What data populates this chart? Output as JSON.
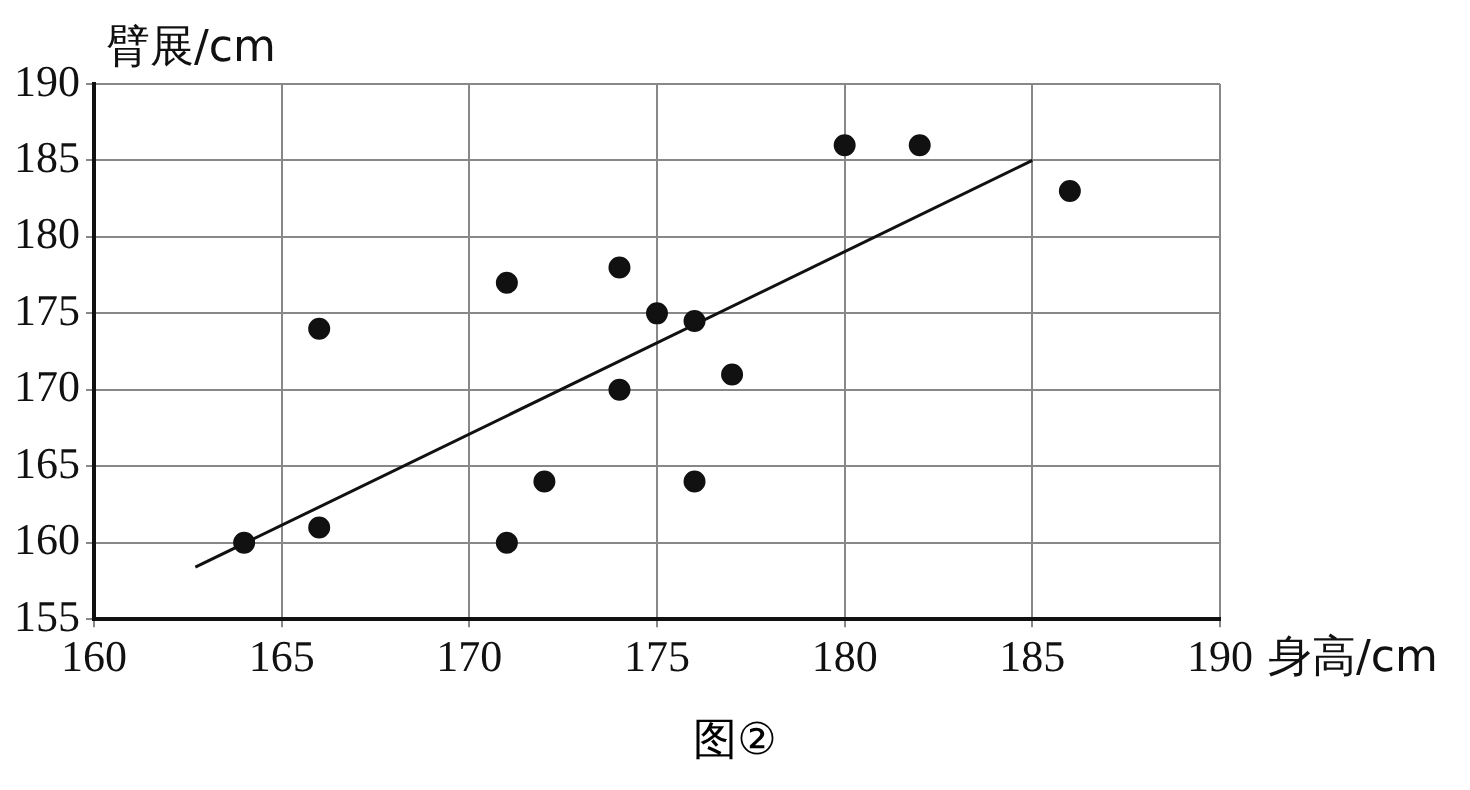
{
  "chart_data": {
    "type": "scatter",
    "xlabel": "身高/cm",
    "ylabel": "臂展/cm",
    "annotations": [
      "图②"
    ],
    "xlim": [
      160,
      190
    ],
    "ylim": [
      155,
      190
    ],
    "xticks": [
      160,
      165,
      170,
      175,
      180,
      185,
      190
    ],
    "yticks": [
      155,
      160,
      165,
      170,
      175,
      180,
      185,
      190
    ],
    "grid": true,
    "legend": false,
    "marker": "circle",
    "series": [
      {
        "color": "#111111",
        "x": [
          164,
          166,
          166,
          171,
          171,
          172,
          174,
          174,
          175,
          176,
          176,
          177,
          180,
          182,
          186
        ],
        "values": [
          160,
          161,
          174,
          177,
          160,
          164,
          178,
          170,
          175,
          174.5,
          164,
          171,
          186,
          186,
          183
        ]
      },
      {
        "type": "line",
        "color": "#111111",
        "x": [
          162.7,
          185
        ],
        "values": [
          158.4,
          185
        ],
        "marker": "none",
        "line_style": "solid"
      }
    ]
  }
}
